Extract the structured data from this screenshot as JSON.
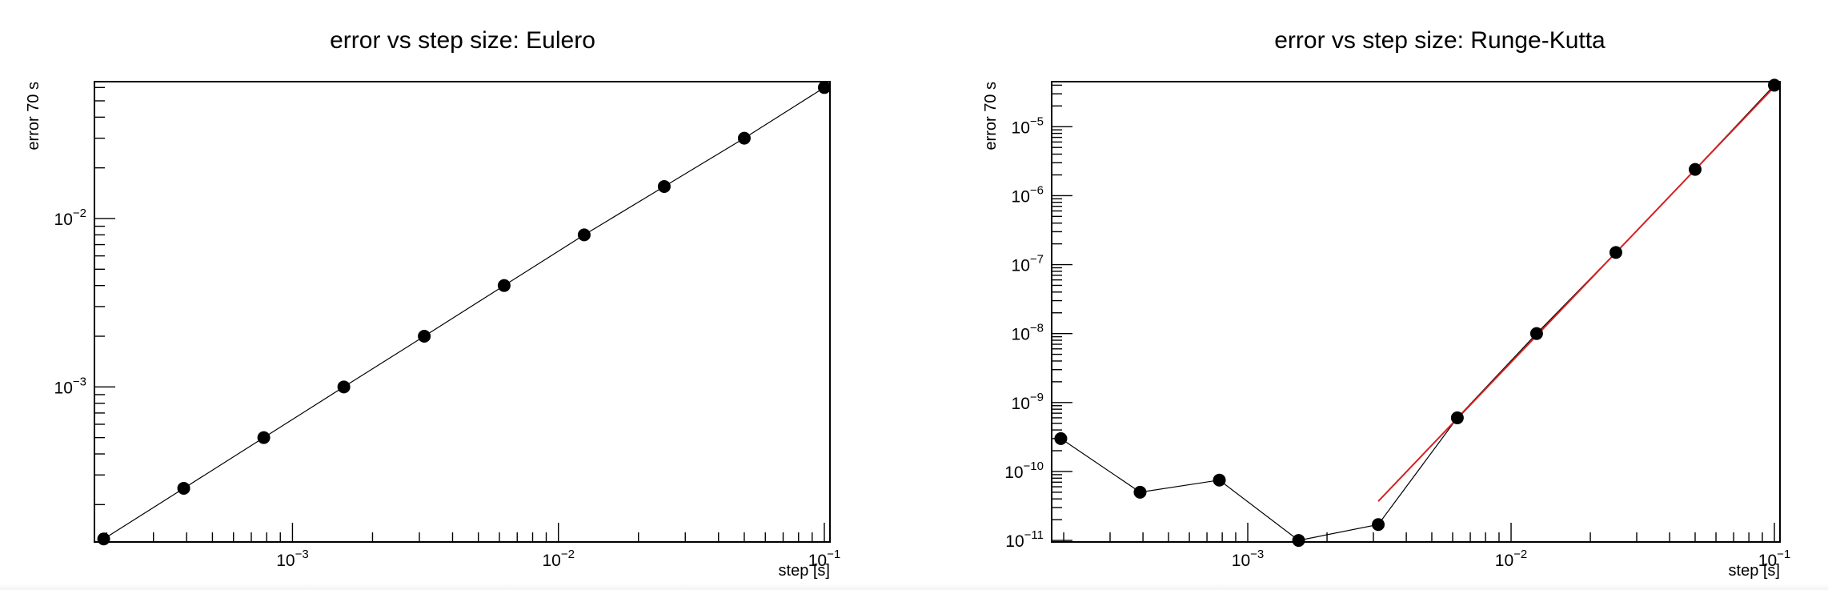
{
  "chart_data": [
    {
      "type": "line",
      "title": "error vs step size: Eulero",
      "xlabel": "step [s]",
      "ylabel": "error 70 s",
      "xscale": "log",
      "yscale": "log",
      "xlim": [
        0.00018,
        0.105
      ],
      "ylim": [
        0.00012,
        0.065
      ],
      "xticks": [
        {
          "value": 0.001,
          "base": "10",
          "exp": "−3"
        },
        {
          "value": 0.01,
          "base": "10",
          "exp": "−2"
        },
        {
          "value": 0.1,
          "base": "10",
          "exp": "−1"
        }
      ],
      "yticks": [
        {
          "value": 0.001,
          "base": "10",
          "exp": "−3"
        },
        {
          "value": 0.01,
          "base": "10",
          "exp": "−2"
        }
      ],
      "grid": false,
      "series": [
        {
          "x": [
            0.000195,
            0.00039,
            0.00078,
            0.00156,
            0.00313,
            0.00625,
            0.0125,
            0.025,
            0.05,
            0.1
          ],
          "y": [
            0.000125,
            0.00025,
            0.0005,
            0.001,
            0.002,
            0.004,
            0.008,
            0.0155,
            0.03,
            0.06
          ],
          "color": "#000000",
          "marker": "circle"
        }
      ]
    },
    {
      "type": "line",
      "title": "error vs step size: Runge-Kutta",
      "xlabel": "step [s]",
      "ylabel": "error 70 s",
      "xscale": "log",
      "yscale": "log",
      "xlim": [
        0.00018,
        0.105
      ],
      "ylim": [
        9.5e-12,
        4.5e-05
      ],
      "xticks": [
        {
          "value": 0.001,
          "base": "10",
          "exp": "−3"
        },
        {
          "value": 0.01,
          "base": "10",
          "exp": "−2"
        },
        {
          "value": 0.1,
          "base": "10",
          "exp": "−1"
        }
      ],
      "yticks": [
        {
          "value": 1e-11,
          "base": "10",
          "exp": "−11"
        },
        {
          "value": 1e-10,
          "base": "10",
          "exp": "−10"
        },
        {
          "value": 1e-09,
          "base": "10",
          "exp": "−9"
        },
        {
          "value": 1e-08,
          "base": "10",
          "exp": "−8"
        },
        {
          "value": 1e-07,
          "base": "10",
          "exp": "−7"
        },
        {
          "value": 1e-06,
          "base": "10",
          "exp": "−6"
        },
        {
          "value": 1e-05,
          "base": "10",
          "exp": "−5"
        }
      ],
      "grid": false,
      "series": [
        {
          "x": [
            0.000195,
            0.00039,
            0.00078,
            0.00156,
            0.00313,
            0.00625,
            0.0125,
            0.025,
            0.05,
            0.1
          ],
          "y": [
            3e-10,
            5e-11,
            7.5e-11,
            1e-11,
            1.7e-11,
            6e-10,
            1e-08,
            1.5e-07,
            2.4e-06,
            4e-05
          ],
          "color": "#000000",
          "marker": "circle"
        }
      ],
      "fit": {
        "x": [
          0.00313,
          0.1
        ],
        "y": [
          3.7e-11,
          3.8e-05
        ],
        "color": "#d62020"
      }
    }
  ]
}
